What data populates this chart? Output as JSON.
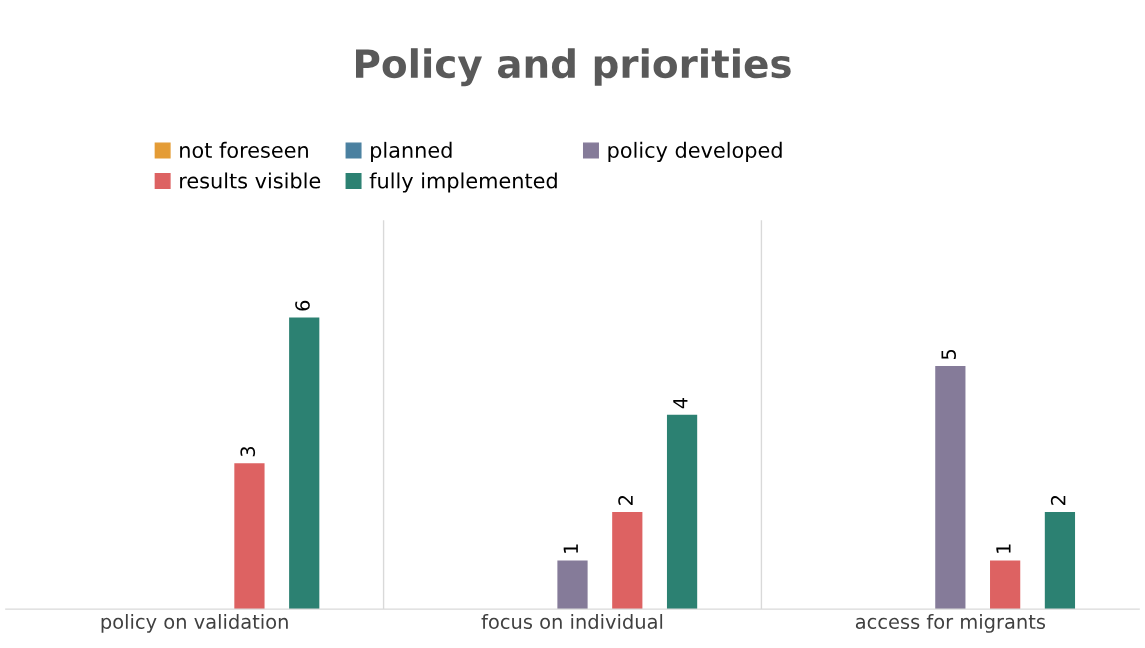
{
  "chart_data": {
    "type": "bar",
    "title": "Policy and priorities",
    "categories": [
      "policy on validation",
      "focus on individual",
      "access for migrants"
    ],
    "series": [
      {
        "name": "not foreseen",
        "color": "#e49c36",
        "values": [
          0,
          0,
          0
        ],
        "value_labels": [
          null,
          null,
          null
        ]
      },
      {
        "name": "planned",
        "color": "#4a80a0",
        "values": [
          0,
          0,
          0
        ],
        "value_labels": [
          null,
          null,
          null
        ]
      },
      {
        "name": "policy developed",
        "color": "#857b99",
        "values": [
          0,
          1,
          5
        ],
        "value_labels": [
          null,
          "1",
          "5"
        ]
      },
      {
        "name": "results visible",
        "color": "#dd6262",
        "values": [
          3,
          2,
          1
        ],
        "value_labels": [
          "3",
          "2",
          "1"
        ]
      },
      {
        "name": "fully implemented",
        "color": "#2c8172",
        "values": [
          6,
          4,
          2
        ],
        "value_labels": [
          "6",
          "4",
          "2"
        ]
      }
    ],
    "ylim": [
      0,
      8
    ],
    "grid": "x",
    "legend": "top",
    "tick_labels": "x"
  }
}
